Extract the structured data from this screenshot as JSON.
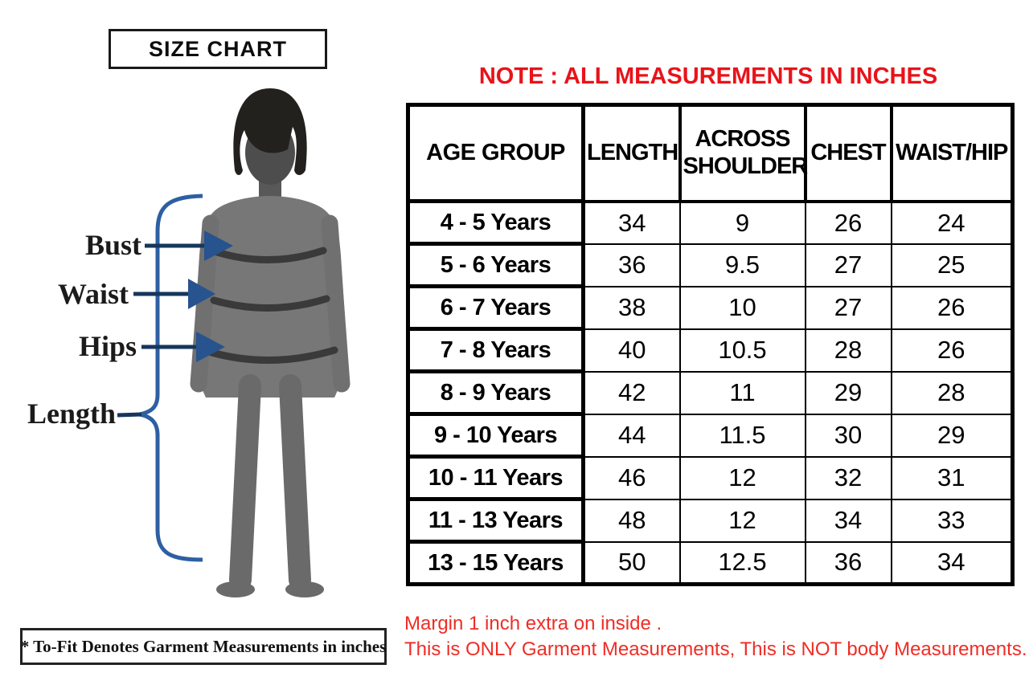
{
  "title": "SIZE CHART",
  "note": "NOTE : ALL MEASUREMENTS IN INCHES",
  "figure": {
    "labels": [
      "Bust",
      "Waist",
      "Hips",
      "Length"
    ]
  },
  "chart_data": {
    "type": "table",
    "title": "SIZE CHART",
    "units": "inches",
    "columns": [
      "AGE GROUP",
      "LENGTH",
      "ACROSS SHOULDER",
      "CHEST",
      "WAIST/HIP"
    ],
    "rows": [
      [
        "4 - 5 Years",
        "34",
        "9",
        "26",
        "24"
      ],
      [
        "5 - 6 Years",
        "36",
        "9.5",
        "27",
        "25"
      ],
      [
        "6 - 7 Years",
        "38",
        "10",
        "27",
        "26"
      ],
      [
        "7 - 8 Years",
        "40",
        "10.5",
        "28",
        "26"
      ],
      [
        "8 - 9 Years",
        "42",
        "11",
        "29",
        "28"
      ],
      [
        "9 - 10 Years",
        "44",
        "11.5",
        "30",
        "29"
      ],
      [
        "10 - 11 Years",
        "46",
        "12",
        "32",
        "31"
      ],
      [
        "11 - 13 Years",
        "48",
        "12",
        "34",
        "33"
      ],
      [
        "13 - 15 Years",
        "50",
        "12.5",
        "36",
        "34"
      ]
    ]
  },
  "footnotes": {
    "left_box": "* To-Fit Denotes Garment Measurements in inches",
    "red_line1": "Margin 1 inch extra on inside .",
    "red_line2": "This is ONLY Garment Measurements, This is NOT body Measurements."
  },
  "colors": {
    "accent_red": "#e8131a",
    "footer_red": "#ee2d26",
    "arrow_blue": "#2e5fa3",
    "arrowhead_blue": "#27538e",
    "body_gray": "#777777",
    "band_gray": "#3a3a3a"
  }
}
